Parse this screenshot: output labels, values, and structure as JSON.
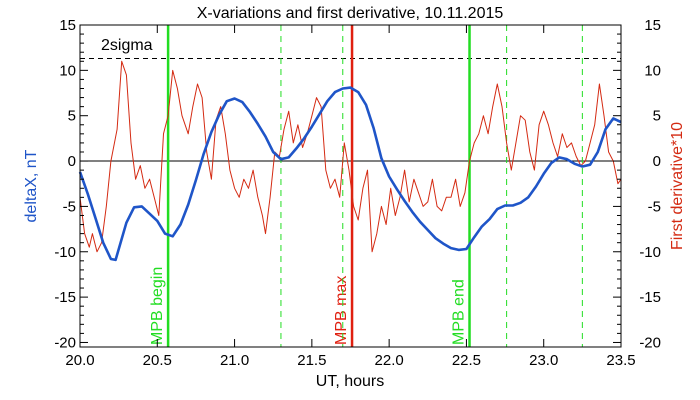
{
  "chart_data": {
    "type": "line",
    "title": "X-variations and first derivative, 10.11.2015",
    "xlabel": "UT, hours",
    "ylabel_left": "deltaX, nT",
    "ylabel_right": "First derivative*10",
    "xlim": [
      20.0,
      23.5
    ],
    "ylim": [
      -20.5,
      15
    ],
    "x_ticks": [
      "20.0",
      "20.5",
      "21.0",
      "21.5",
      "22.0",
      "22.5",
      "23.0",
      "23.5"
    ],
    "y_ticks": [
      "-20",
      "-15",
      "-10",
      "-5",
      "0",
      "5",
      "10",
      "15"
    ],
    "threshold": {
      "label": "2sigma",
      "value": 11.3
    },
    "colors": {
      "deltaX": "#1f55c8",
      "derivative": "#d42a12",
      "mpb_edge": "#22dd22",
      "mpb_max": "#e02010",
      "axes": "#000000"
    },
    "markers": [
      {
        "label": "MPB begin",
        "x": 20.57,
        "color": "#22dd22",
        "style": "solid"
      },
      {
        "label": "MPB max",
        "x": 21.76,
        "color": "#e02010",
        "style": "solid"
      },
      {
        "label": "MPB end",
        "x": 22.52,
        "color": "#22dd22",
        "style": "solid"
      },
      {
        "label": "",
        "x": 21.3,
        "color": "#22dd22",
        "style": "dashed"
      },
      {
        "label": "",
        "x": 21.7,
        "color": "#22dd22",
        "style": "dashed"
      },
      {
        "label": "",
        "x": 22.76,
        "color": "#22dd22",
        "style": "dashed"
      },
      {
        "label": "",
        "x": 23.25,
        "color": "#22dd22",
        "style": "dashed"
      }
    ],
    "series": [
      {
        "axis": "left",
        "color": "#1f55c8",
        "x": [
          20.0,
          20.05,
          20.1,
          20.15,
          20.2,
          20.23,
          20.3,
          20.35,
          20.4,
          20.45,
          20.5,
          20.55,
          20.6,
          20.65,
          20.7,
          20.75,
          20.8,
          20.85,
          20.9,
          20.95,
          21.0,
          21.05,
          21.1,
          21.15,
          21.2,
          21.25,
          21.3,
          21.35,
          21.4,
          21.45,
          21.5,
          21.55,
          21.6,
          21.65,
          21.7,
          21.75,
          21.8,
          21.85,
          21.9,
          21.95,
          22.0,
          22.05,
          22.1,
          22.15,
          22.2,
          22.25,
          22.3,
          22.35,
          22.4,
          22.45,
          22.5,
          22.55,
          22.6,
          22.65,
          22.7,
          22.75,
          22.8,
          22.85,
          22.9,
          22.95,
          23.0,
          23.05,
          23.1,
          23.15,
          23.2,
          23.25,
          23.3,
          23.35,
          23.4,
          23.45,
          23.5
        ],
        "y": [
          -1.2,
          -3.6,
          -6.3,
          -9.0,
          -10.8,
          -10.9,
          -6.8,
          -5.1,
          -5.0,
          -5.8,
          -6.6,
          -8.0,
          -8.3,
          -7.0,
          -4.8,
          -2.1,
          0.8,
          3.2,
          5.1,
          6.6,
          6.9,
          6.5,
          5.4,
          4.1,
          2.7,
          1.0,
          0.2,
          0.4,
          1.4,
          2.5,
          3.8,
          5.2,
          6.6,
          7.6,
          8.0,
          8.1,
          7.6,
          6.2,
          3.6,
          0.3,
          -1.7,
          -3.1,
          -4.4,
          -5.6,
          -6.7,
          -7.6,
          -8.5,
          -9.1,
          -9.6,
          -9.8,
          -9.7,
          -8.4,
          -7.2,
          -6.4,
          -5.3,
          -4.9,
          -4.9,
          -4.6,
          -4.0,
          -2.8,
          -1.4,
          -0.2,
          0.4,
          0.2,
          -0.3,
          -0.6,
          -0.4,
          1.0,
          3.5,
          4.7,
          4.3
        ]
      },
      {
        "axis": "right",
        "color": "#d42a12",
        "x": [
          20.0,
          20.03,
          20.06,
          20.08,
          20.11,
          20.14,
          20.17,
          20.2,
          20.24,
          20.27,
          20.3,
          20.33,
          20.36,
          20.39,
          20.42,
          20.45,
          20.48,
          20.51,
          20.54,
          20.57,
          20.6,
          20.63,
          20.66,
          20.7,
          20.73,
          20.76,
          20.79,
          20.82,
          20.85,
          20.88,
          20.91,
          20.94,
          20.97,
          21.0,
          21.03,
          21.06,
          21.09,
          21.12,
          21.15,
          21.18,
          21.2,
          21.23,
          21.26,
          21.29,
          21.32,
          21.35,
          21.38,
          21.41,
          21.44,
          21.47,
          21.5,
          21.53,
          21.56,
          21.59,
          21.62,
          21.65,
          21.68,
          21.71,
          21.74,
          21.77,
          21.8,
          21.83,
          21.86,
          21.89,
          21.92,
          21.95,
          21.98,
          22.01,
          22.04,
          22.07,
          22.1,
          22.13,
          22.16,
          22.19,
          22.22,
          22.25,
          22.28,
          22.31,
          22.34,
          22.37,
          22.4,
          22.43,
          22.46,
          22.49,
          22.52,
          22.55,
          22.58,
          22.61,
          22.64,
          22.67,
          22.7,
          22.73,
          22.76,
          22.79,
          22.82,
          22.85,
          22.88,
          22.91,
          22.94,
          22.97,
          23.0,
          23.03,
          23.06,
          23.09,
          23.12,
          23.15,
          23.18,
          23.21,
          23.24,
          23.27,
          23.3,
          23.33,
          23.36,
          23.39,
          23.42,
          23.45,
          23.48,
          23.5
        ],
        "y": [
          -4.0,
          -8.0,
          -9.5,
          -8.0,
          -10.0,
          -9.0,
          -5.0,
          0.0,
          3.5,
          11.0,
          9.5,
          2.0,
          -2.0,
          -0.5,
          -3.0,
          -2.0,
          -4.0,
          -6.0,
          3.0,
          5.0,
          10.0,
          8.0,
          5.0,
          3.0,
          6.0,
          8.5,
          7.0,
          1.0,
          -2.0,
          4.5,
          6.0,
          3.0,
          -1.0,
          -3.0,
          -4.0,
          -2.0,
          -3.0,
          -1.0,
          -4.0,
          -6.0,
          -8.0,
          -4.0,
          1.0,
          0.5,
          3.5,
          5.5,
          2.0,
          4.0,
          1.5,
          3.0,
          5.0,
          7.0,
          6.0,
          -1.0,
          -3.0,
          -2.0,
          -4.0,
          2.0,
          -1.0,
          -5.0,
          -6.5,
          -3.0,
          -1.0,
          -10.0,
          -8.0,
          -5.0,
          -7.0,
          -3.0,
          -6.0,
          -4.0,
          -1.0,
          -4.5,
          -2.0,
          -3.5,
          -5.0,
          -4.5,
          -2.0,
          -5.0,
          -5.5,
          -4.0,
          -4.0,
          -2.0,
          -5.0,
          -3.5,
          0.0,
          2.0,
          3.0,
          5.0,
          3.0,
          6.0,
          8.5,
          6.0,
          2.0,
          -1.0,
          2.0,
          5.0,
          4.5,
          1.0,
          -1.0,
          4.0,
          5.5,
          4.0,
          2.0,
          0.5,
          3.0,
          1.5,
          2.0,
          0.5,
          -0.5,
          0.0,
          2.0,
          4.0,
          8.5,
          5.0,
          1.0,
          0.0,
          -2.5,
          -2.0
        ]
      }
    ]
  }
}
